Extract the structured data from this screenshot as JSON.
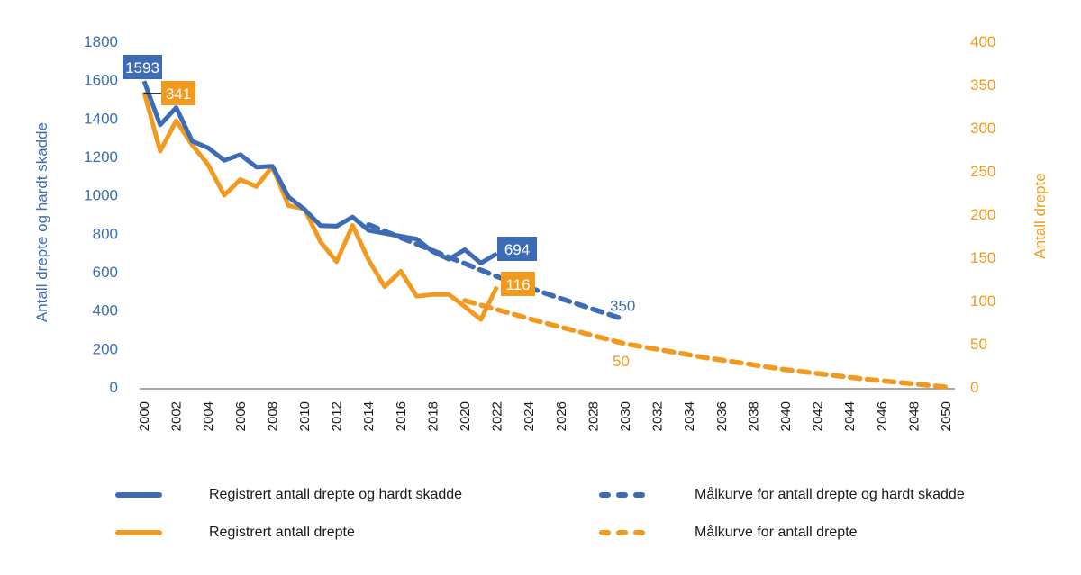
{
  "chart_data": {
    "type": "line",
    "title": "",
    "xlabel": "",
    "ylabel_left": "Antall drepte og hardt skadde",
    "ylabel_right": "Antall drepte",
    "xlim": [
      2000,
      2050
    ],
    "ylim_left": [
      0,
      1800
    ],
    "ylim_right": [
      0,
      400
    ],
    "grid": false,
    "legend_position": "bottom",
    "x_ticks": [
      "2000",
      "2002",
      "2004",
      "2006",
      "2008",
      "2010",
      "2012",
      "2014",
      "2016",
      "2018",
      "2020",
      "2022",
      "2024",
      "2026",
      "2028",
      "2030",
      "2032",
      "2034",
      "2036",
      "2038",
      "2040",
      "2042",
      "2044",
      "2046",
      "2048",
      "2050"
    ],
    "y_ticks_left": [
      "0",
      "200",
      "400",
      "600",
      "800",
      "1000",
      "1200",
      "1400",
      "1600",
      "1800"
    ],
    "y_ticks_right": [
      "0",
      "50",
      "100",
      "150",
      "200",
      "250",
      "300",
      "350",
      "400"
    ],
    "colors": {
      "blue": "#3d6cb5",
      "orange": "#f29a1f",
      "axis": "#8c8c8c"
    },
    "series": [
      {
        "name": "Registrert antall drepte og hardt skadde",
        "axis": "left",
        "color": "#3d6cb5",
        "style": "solid",
        "x": [
          2000,
          2001,
          2002,
          2003,
          2004,
          2005,
          2006,
          2007,
          2008,
          2009,
          2010,
          2011,
          2012,
          2013,
          2014,
          2015,
          2016,
          2017,
          2018,
          2019,
          2020,
          2021,
          2022
        ],
        "values": [
          1593,
          1365,
          1455,
          1280,
          1245,
          1180,
          1210,
          1145,
          1150,
          990,
          925,
          840,
          837,
          885,
          815,
          800,
          785,
          770,
          705,
          665,
          715,
          645,
          694
        ]
      },
      {
        "name": "Registrert antall drepte",
        "axis": "right",
        "color": "#f29a1f",
        "style": "solid",
        "x": [
          2000,
          2001,
          2002,
          2003,
          2004,
          2005,
          2006,
          2007,
          2008,
          2009,
          2010,
          2011,
          2012,
          2013,
          2014,
          2015,
          2016,
          2017,
          2018,
          2019,
          2020,
          2021,
          2022
        ],
        "values": [
          341,
          273,
          308,
          280,
          257,
          222,
          240,
          232,
          255,
          210,
          206,
          168,
          145,
          187,
          147,
          116,
          134,
          105,
          107,
          107,
          93,
          78,
          116
        ]
      },
      {
        "name": "Målkurve for antall drepte og hardt skadde",
        "axis": "left",
        "color": "#3d6cb5",
        "style": "dashed",
        "x": [
          2014,
          2018,
          2022,
          2026,
          2030
        ],
        "values": [
          845,
          710,
          575,
          460,
          350
        ]
      },
      {
        "name": "Målkurve for antall drepte",
        "axis": "right",
        "color": "#f29a1f",
        "style": "dashed",
        "x": [
          2020,
          2025,
          2030,
          2035,
          2040,
          2045,
          2050
        ],
        "values": [
          100,
          74,
          50,
          34,
          20,
          9,
          0
        ]
      }
    ],
    "data_labels": [
      {
        "series": 0,
        "text": "1593",
        "style": "box"
      },
      {
        "series": 1,
        "text": "341",
        "style": "box"
      },
      {
        "series": 0,
        "text": "694",
        "style": "box"
      },
      {
        "series": 1,
        "text": "116",
        "style": "box"
      },
      {
        "series": 2,
        "text": "350",
        "style": "plain"
      },
      {
        "series": 3,
        "text": "50",
        "style": "plain"
      }
    ]
  },
  "legend": [
    {
      "label": "Registrert antall drepte og hardt skadde",
      "color": "#3d6cb5",
      "style": "solid"
    },
    {
      "label": "Registrert antall drepte",
      "color": "#f29a1f",
      "style": "solid"
    },
    {
      "label": "Målkurve for antall drepte og hardt skadde",
      "color": "#3d6cb5",
      "style": "dashed"
    },
    {
      "label": "Målkurve for antall drepte",
      "color": "#f29a1f",
      "style": "dashed"
    }
  ]
}
